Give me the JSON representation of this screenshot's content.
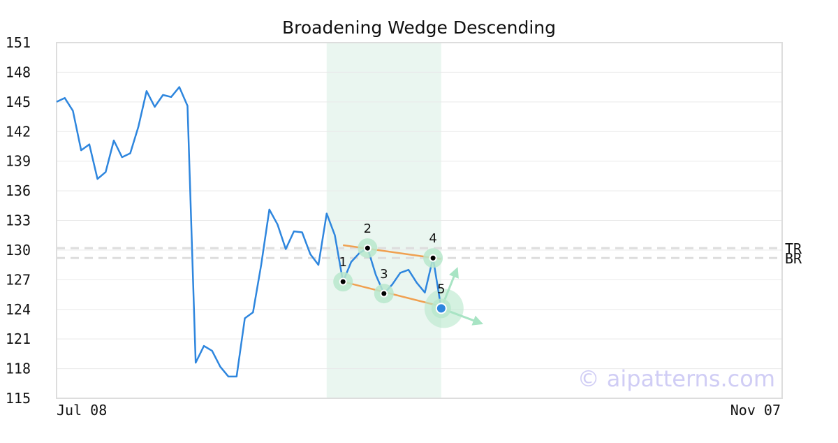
{
  "chart_data": {
    "type": "line",
    "title": "Broadening Wedge Descending",
    "xlabel": "",
    "ylabel": "",
    "ylim": [
      115,
      151
    ],
    "yticks": [
      115,
      118,
      121,
      124,
      127,
      130,
      133,
      136,
      139,
      142,
      145,
      148,
      151
    ],
    "x_tick_labels": [
      "Jul 08",
      "Nov 07"
    ],
    "grid": true,
    "series": [
      {
        "values": [
          145.0,
          145.4,
          144.1,
          140.1,
          140.7,
          137.2,
          137.9,
          141.1,
          139.4,
          139.8,
          142.5,
          146.1,
          144.5,
          145.7,
          145.5,
          146.5,
          144.6,
          118.6,
          120.3,
          119.8,
          118.2,
          117.2,
          117.2,
          123.1,
          123.7,
          128.5,
          134.1,
          132.6,
          130.1,
          131.9,
          131.8,
          129.6,
          128.5,
          133.7,
          131.5,
          126.8,
          128.8,
          129.7,
          130.2,
          127.5,
          125.6,
          126.5,
          127.7,
          128.0,
          126.7,
          125.7,
          129.2,
          124.1
        ]
      }
    ],
    "pattern": {
      "name": "Broadening Wedge Descending",
      "points": [
        {
          "label": "1",
          "index": 35,
          "value": 126.8
        },
        {
          "label": "2",
          "index": 38,
          "value": 130.2
        },
        {
          "label": "3",
          "index": 40,
          "value": 125.6
        },
        {
          "label": "4",
          "index": 46,
          "value": 129.2
        },
        {
          "label": "5",
          "index": 47,
          "value": 124.1
        }
      ],
      "highlight_range": {
        "start_index": 33,
        "end_index": 47
      },
      "upper_trendline": {
        "start": {
          "index": 35,
          "value": 130.5
        },
        "end": {
          "index": 47,
          "value": 129.1
        }
      },
      "lower_trendline": {
        "start": {
          "index": 35,
          "value": 126.8
        },
        "end": {
          "index": 47,
          "value": 124.3
        }
      },
      "reference_levels": [
        {
          "label": "TR",
          "value": 130.2
        },
        {
          "label": "BR",
          "value": 129.2
        }
      ]
    },
    "watermark": "© aipatterns.com",
    "colors": {
      "line": "#2e86de",
      "trendline": "#f0a050",
      "highlight": "#eaf6f0",
      "marker_halo": "#b8e8cc",
      "arrow": "#a8e4c4",
      "watermark": "#d0cdf5",
      "reference": "#dddddd",
      "last_point": "#2e86de"
    }
  }
}
